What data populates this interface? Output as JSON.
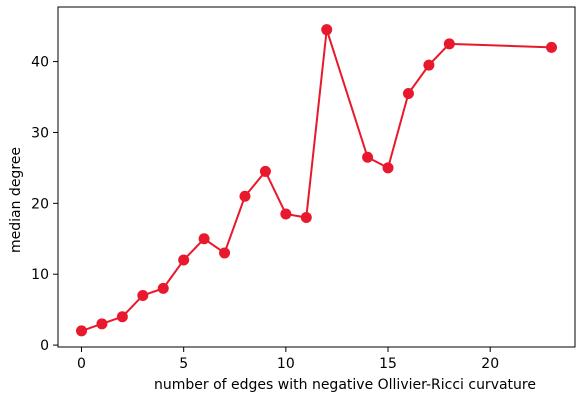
{
  "chart_data": {
    "type": "line",
    "title": "",
    "xlabel": "number of edges with negative Ollivier-Ricci curvature",
    "ylabel": "median degree",
    "xlim": [
      -1.15,
      24.15
    ],
    "ylim": [
      -0.27,
      47.7
    ],
    "grid": false,
    "legend": "none",
    "x_ticks": [
      0,
      5,
      10,
      15,
      20
    ],
    "y_ticks": [
      0,
      10,
      20,
      30,
      40
    ],
    "series": [
      {
        "color": "#e8192c",
        "marker": "circle",
        "points": [
          {
            "x": 0,
            "y": 2
          },
          {
            "x": 1,
            "y": 3
          },
          {
            "x": 2,
            "y": 4
          },
          {
            "x": 3,
            "y": 7
          },
          {
            "x": 4,
            "y": 8
          },
          {
            "x": 5,
            "y": 12
          },
          {
            "x": 6,
            "y": 15
          },
          {
            "x": 7,
            "y": 13
          },
          {
            "x": 8,
            "y": 21
          },
          {
            "x": 9,
            "y": 24.5
          },
          {
            "x": 10,
            "y": 18.5
          },
          {
            "x": 11,
            "y": 18
          },
          {
            "x": 12,
            "y": 44.5
          },
          {
            "x": 14,
            "y": 26.5
          },
          {
            "x": 15,
            "y": 25
          },
          {
            "x": 16,
            "y": 35.5
          },
          {
            "x": 17,
            "y": 39.5
          },
          {
            "x": 18,
            "y": 42.5
          },
          {
            "x": 23,
            "y": 42
          }
        ]
      }
    ]
  }
}
